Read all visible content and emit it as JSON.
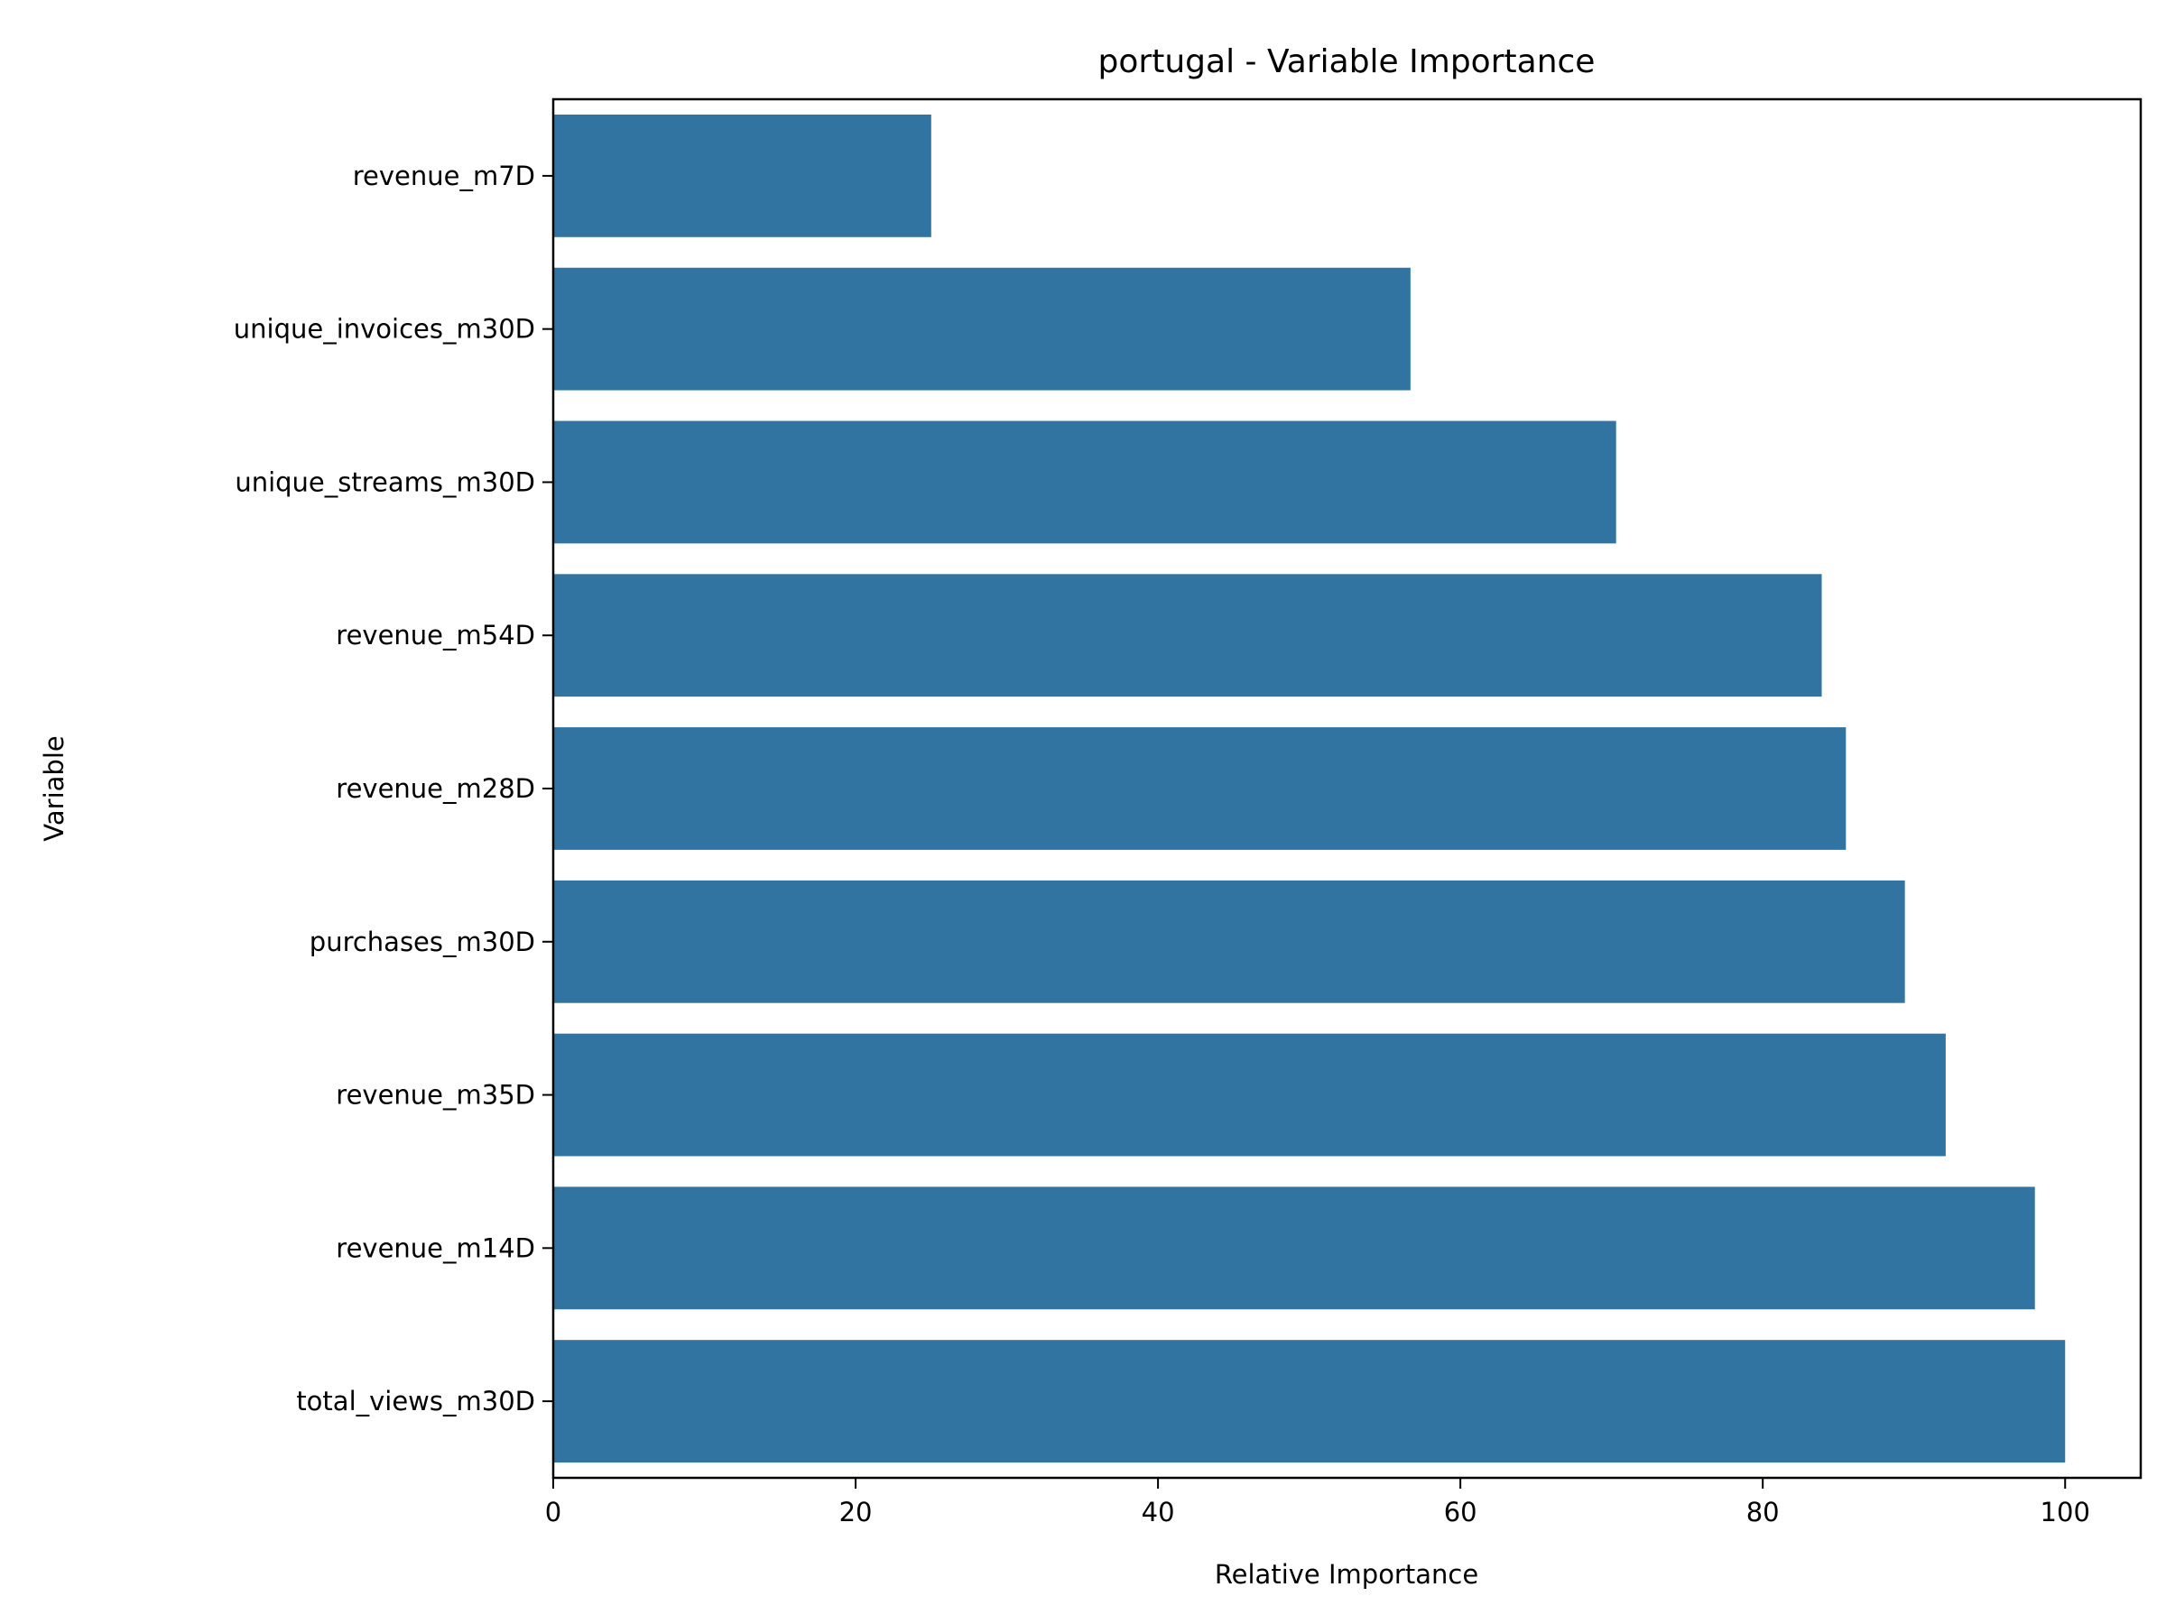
{
  "chart_data": {
    "type": "bar",
    "orientation": "horizontal",
    "title": "portugal - Variable Importance",
    "xlabel": "Relative Importance",
    "ylabel": "Variable",
    "categories": [
      "revenue_m7D",
      "unique_invoices_m30D",
      "unique_streams_m30D",
      "revenue_m54D",
      "revenue_m28D",
      "purchases_m30D",
      "revenue_m35D",
      "revenue_m14D",
      "total_views_m30D"
    ],
    "values": [
      25.0,
      56.7,
      70.3,
      83.9,
      85.5,
      89.4,
      92.1,
      98.0,
      100.0
    ],
    "xlim": [
      0,
      105
    ],
    "xticks": [
      "0",
      "20",
      "40",
      "60",
      "80",
      "100"
    ],
    "grid": false,
    "legend": false,
    "bar_color": "#3274a1"
  }
}
